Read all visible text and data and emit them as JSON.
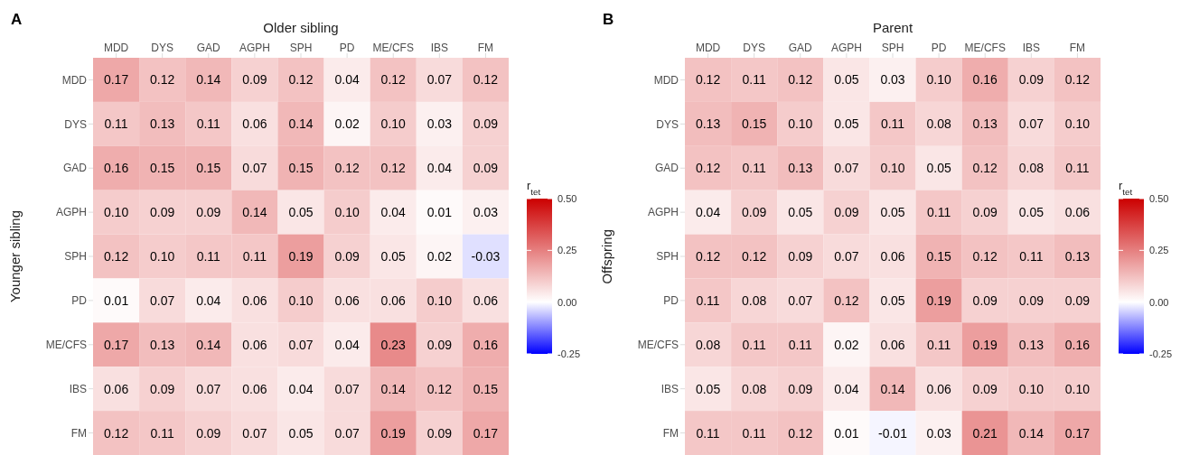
{
  "chart_data": [
    {
      "type": "heatmap",
      "title": "A",
      "xlabel": "Older sibling",
      "ylabel": "Younger sibling",
      "clabel": "r$_{tet}$",
      "categories": [
        "MDD",
        "DYS",
        "GAD",
        "AGPH",
        "SPH",
        "PD",
        "ME/CFS",
        "IBS",
        "FM"
      ],
      "y_categories": [
        "MDD",
        "DYS",
        "GAD",
        "AGPH",
        "SPH",
        "PD",
        "ME/CFS",
        "IBS",
        "FM"
      ],
      "cells": [
        [
          0.17,
          0.12,
          0.14,
          0.09,
          0.12,
          0.04,
          0.12,
          0.07,
          0.12
        ],
        [
          0.11,
          0.13,
          0.11,
          0.06,
          0.14,
          0.02,
          0.1,
          0.03,
          0.09
        ],
        [
          0.16,
          0.15,
          0.15,
          0.07,
          0.15,
          0.12,
          0.12,
          0.04,
          0.09
        ],
        [
          0.1,
          0.09,
          0.09,
          0.14,
          0.05,
          0.1,
          0.04,
          0.01,
          0.03
        ],
        [
          0.12,
          0.1,
          0.11,
          0.11,
          0.19,
          0.09,
          0.05,
          0.02,
          -0.03
        ],
        [
          0.01,
          0.07,
          0.04,
          0.06,
          0.1,
          0.06,
          0.06,
          0.1,
          0.06
        ],
        [
          0.17,
          0.13,
          0.14,
          0.06,
          0.07,
          0.04,
          0.23,
          0.09,
          0.16
        ],
        [
          0.06,
          0.09,
          0.07,
          0.06,
          0.04,
          0.07,
          0.14,
          0.12,
          0.15
        ],
        [
          0.12,
          0.11,
          0.09,
          0.07,
          0.05,
          0.07,
          0.19,
          0.09,
          0.17
        ]
      ],
      "cell_labels": [
        [
          "0.17",
          "0.12",
          "0.14",
          "0.09",
          "0.12",
          "0.04",
          "0.12",
          "0.07",
          "0.12"
        ],
        [
          "0.11",
          "0.13",
          "0.11",
          "0.06",
          "0.14",
          "0.02",
          "0.10",
          "0.03",
          "0.09"
        ],
        [
          "0.16",
          "0.15",
          "0.15",
          "0.07",
          "0.15",
          "0.12",
          "0.12",
          "0.04",
          "0.09"
        ],
        [
          "0.10",
          "0.09",
          "0.09",
          "0.14",
          "0.05",
          "0.10",
          "0.04",
          "0.01",
          "0.03"
        ],
        [
          "0.12",
          "0.10",
          "0.11",
          "0.11",
          "0.19",
          "0.09",
          "0.05",
          "0.02",
          "-0.03"
        ],
        [
          "0.01",
          "0.07",
          "0.04",
          "0.06",
          "0.10",
          "0.06",
          "0.06",
          "0.10",
          "0.06"
        ],
        [
          "0.17",
          "0.13",
          "0.14",
          "0.06",
          "0.07",
          "0.04",
          "0.23",
          "0.09",
          "0.16"
        ],
        [
          "0.06",
          "0.09",
          "0.07",
          "0.06",
          "0.04",
          "0.07",
          "0.14",
          "0.12",
          "0.15"
        ],
        [
          "0.12",
          "0.11",
          "0.09",
          "0.07",
          "0.05",
          "0.07",
          "0.19",
          "0.09",
          "0.17"
        ]
      ],
      "clim": [
        -0.25,
        0.5
      ],
      "cticks": [
        {
          "value": -0.25,
          "label": "-0.25"
        },
        {
          "value": 0,
          "label": "0.00"
        },
        {
          "value": 0.25,
          "label": "0.25"
        },
        {
          "value": 0.5,
          "label": "0.50"
        }
      ]
    },
    {
      "type": "heatmap",
      "title": "B",
      "xlabel": "Parent",
      "ylabel": "Offspring",
      "clabel": "r$_{tet}$",
      "categories": [
        "MDD",
        "DYS",
        "GAD",
        "AGPH",
        "SPH",
        "PD",
        "ME/CFS",
        "IBS",
        "FM"
      ],
      "y_categories": [
        "MDD",
        "DYS",
        "GAD",
        "AGPH",
        "SPH",
        "PD",
        "ME/CFS",
        "IBS",
        "FM"
      ],
      "cells": [
        [
          0.12,
          0.11,
          0.12,
          0.05,
          0.03,
          0.1,
          0.16,
          0.09,
          0.12
        ],
        [
          0.13,
          0.15,
          0.1,
          0.05,
          0.11,
          0.08,
          0.13,
          0.07,
          0.1
        ],
        [
          0.12,
          0.11,
          0.13,
          0.07,
          0.1,
          0.05,
          0.12,
          0.08,
          0.11
        ],
        [
          0.04,
          0.09,
          0.05,
          0.09,
          0.05,
          0.11,
          0.09,
          0.05,
          0.06
        ],
        [
          0.12,
          0.12,
          0.09,
          0.07,
          0.06,
          0.15,
          0.12,
          0.11,
          0.13
        ],
        [
          0.11,
          0.08,
          0.07,
          0.12,
          0.05,
          0.19,
          0.09,
          0.09,
          0.09
        ],
        [
          0.08,
          0.11,
          0.11,
          0.02,
          0.06,
          0.11,
          0.19,
          0.13,
          0.16
        ],
        [
          0.05,
          0.08,
          0.09,
          0.04,
          0.14,
          0.06,
          0.09,
          0.1,
          0.1
        ],
        [
          0.11,
          0.11,
          0.12,
          0.01,
          -0.01,
          0.03,
          0.21,
          0.14,
          0.17
        ]
      ],
      "cell_labels": [
        [
          "0.12",
          "0.11",
          "0.12",
          "0.05",
          "0.03",
          "0.10",
          "0.16",
          "0.09",
          "0.12"
        ],
        [
          "0.13",
          "0.15",
          "0.10",
          "0.05",
          "0.11",
          "0.08",
          "0.13",
          "0.07",
          "0.10"
        ],
        [
          "0.12",
          "0.11",
          "0.13",
          "0.07",
          "0.10",
          "0.05",
          "0.12",
          "0.08",
          "0.11"
        ],
        [
          "0.04",
          "0.09",
          "0.05",
          "0.09",
          "0.05",
          "0.11",
          "0.09",
          "0.05",
          "0.06"
        ],
        [
          "0.12",
          "0.12",
          "0.09",
          "0.07",
          "0.06",
          "0.15",
          "0.12",
          "0.11",
          "0.13"
        ],
        [
          "0.11",
          "0.08",
          "0.07",
          "0.12",
          "0.05",
          "0.19",
          "0.09",
          "0.09",
          "0.09"
        ],
        [
          "0.08",
          "0.11",
          "0.11",
          "0.02",
          "0.06",
          "0.11",
          "0.19",
          "0.13",
          "0.16"
        ],
        [
          "0.05",
          "0.08",
          "0.09",
          "0.04",
          "0.14",
          "0.06",
          "0.09",
          "0.10",
          "0.10"
        ],
        [
          "0.11",
          "0.11",
          "0.12",
          "0.01",
          "-0.01",
          "0.03",
          "0.21",
          "0.14",
          "0.17"
        ]
      ],
      "clim": [
        -0.25,
        0.5
      ],
      "cticks": [
        {
          "value": -0.25,
          "label": "-0.25"
        },
        {
          "value": 0,
          "label": "0.00"
        },
        {
          "value": 0.25,
          "label": "0.25"
        },
        {
          "value": 0.5,
          "label": "0.50"
        }
      ]
    }
  ]
}
